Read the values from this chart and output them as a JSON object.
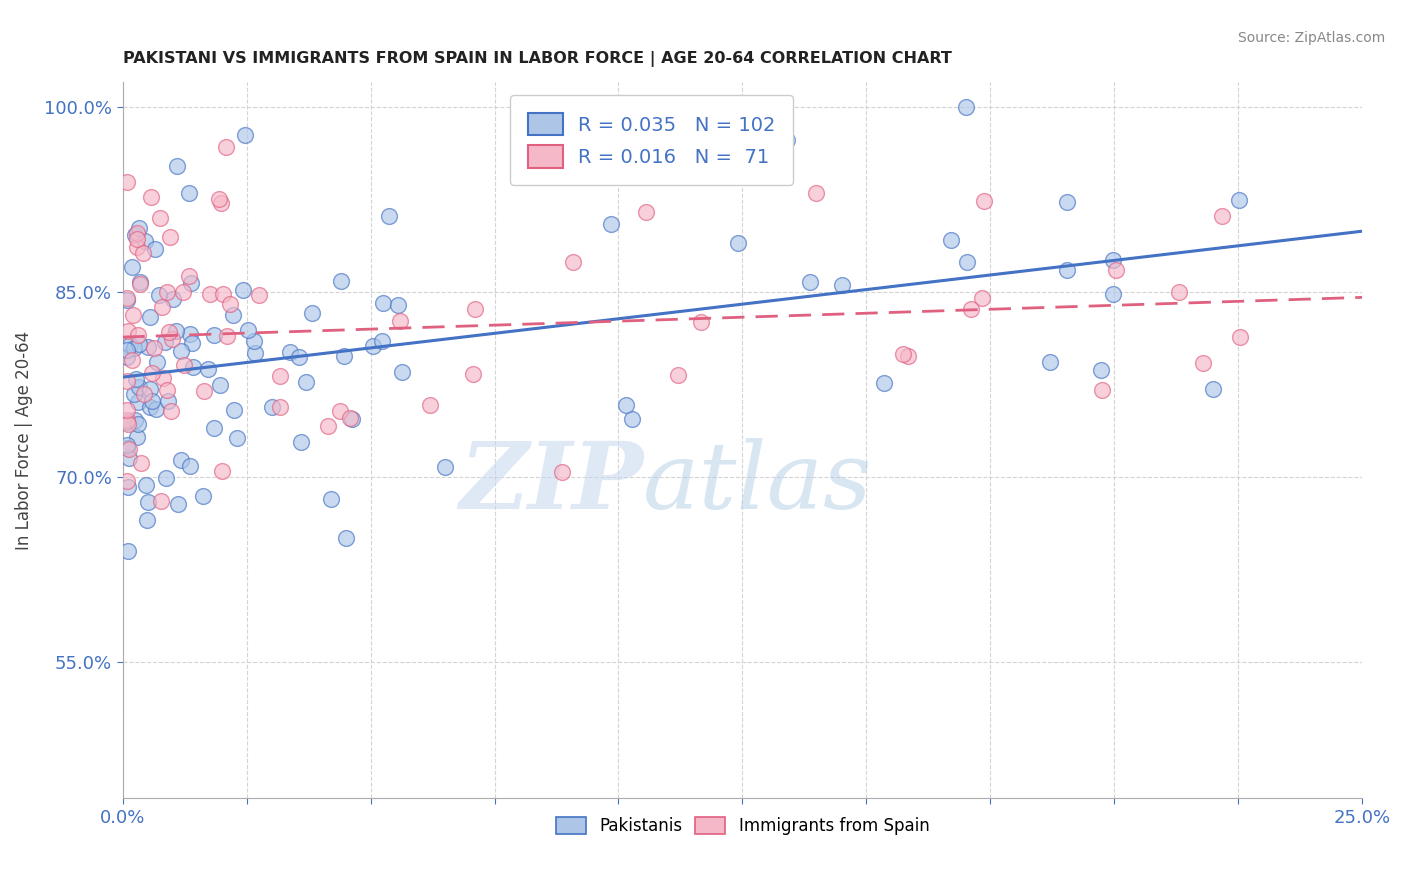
{
  "title": "PAKISTANI VS IMMIGRANTS FROM SPAIN IN LABOR FORCE | AGE 20-64 CORRELATION CHART",
  "source": "Source: ZipAtlas.com",
  "ylabel": "In Labor Force | Age 20-64",
  "xlim": [
    0.0,
    0.25
  ],
  "ylim": [
    0.44,
    1.02
  ],
  "xticks": [
    0.0,
    0.025,
    0.05,
    0.075,
    0.1,
    0.125,
    0.15,
    0.175,
    0.2,
    0.225,
    0.25
  ],
  "yticks": [
    0.55,
    0.7,
    0.85,
    1.0
  ],
  "yticklabels": [
    "55.0%",
    "70.0%",
    "85.0%",
    "100.0%"
  ],
  "legend_labels": [
    "Pakistanis",
    "Immigrants from Spain"
  ],
  "blue_R": 0.035,
  "blue_N": 102,
  "pink_R": 0.016,
  "pink_N": 71,
  "blue_color": "#adc6e8",
  "pink_color": "#f5b8c8",
  "blue_line_color": "#4472c4",
  "pink_line_color": "#e06080",
  "watermark_zip": "ZIP",
  "watermark_atlas": "atlas",
  "background_color": "#ffffff",
  "grid_color": "#d0d0d0",
  "seed_blue": 42,
  "seed_pink": 99
}
